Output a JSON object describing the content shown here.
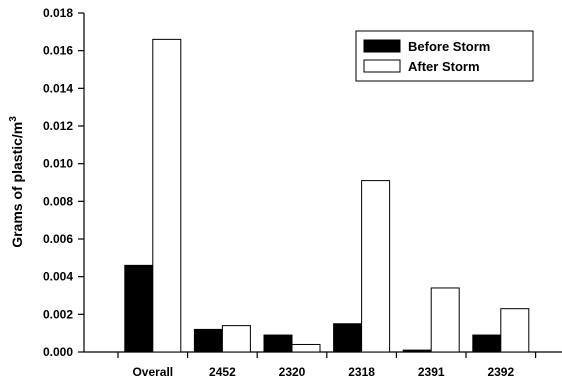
{
  "chart_data": {
    "type": "bar",
    "title": "",
    "xlabel": "",
    "ylabel": "Grams of plastic/m",
    "ylabel_superscript": "3",
    "categories": [
      "Overall",
      "2452",
      "2320",
      "2318",
      "2391",
      "2392"
    ],
    "series": [
      {
        "name": "Before Storm",
        "color": "#000000",
        "values": [
          0.0046,
          0.0012,
          0.0009,
          0.0015,
          0.0001,
          0.0009
        ]
      },
      {
        "name": "After Storm",
        "color": "#ffffff",
        "values": [
          0.0166,
          0.0014,
          0.0004,
          0.0091,
          0.0034,
          0.0023
        ]
      }
    ],
    "ylim": [
      0,
      0.018
    ],
    "yticks": [
      "0.000",
      "0.002",
      "0.004",
      "0.006",
      "0.008",
      "0.010",
      "0.012",
      "0.014",
      "0.016",
      "0.018"
    ],
    "grid": false,
    "legend_position": "top-right"
  }
}
